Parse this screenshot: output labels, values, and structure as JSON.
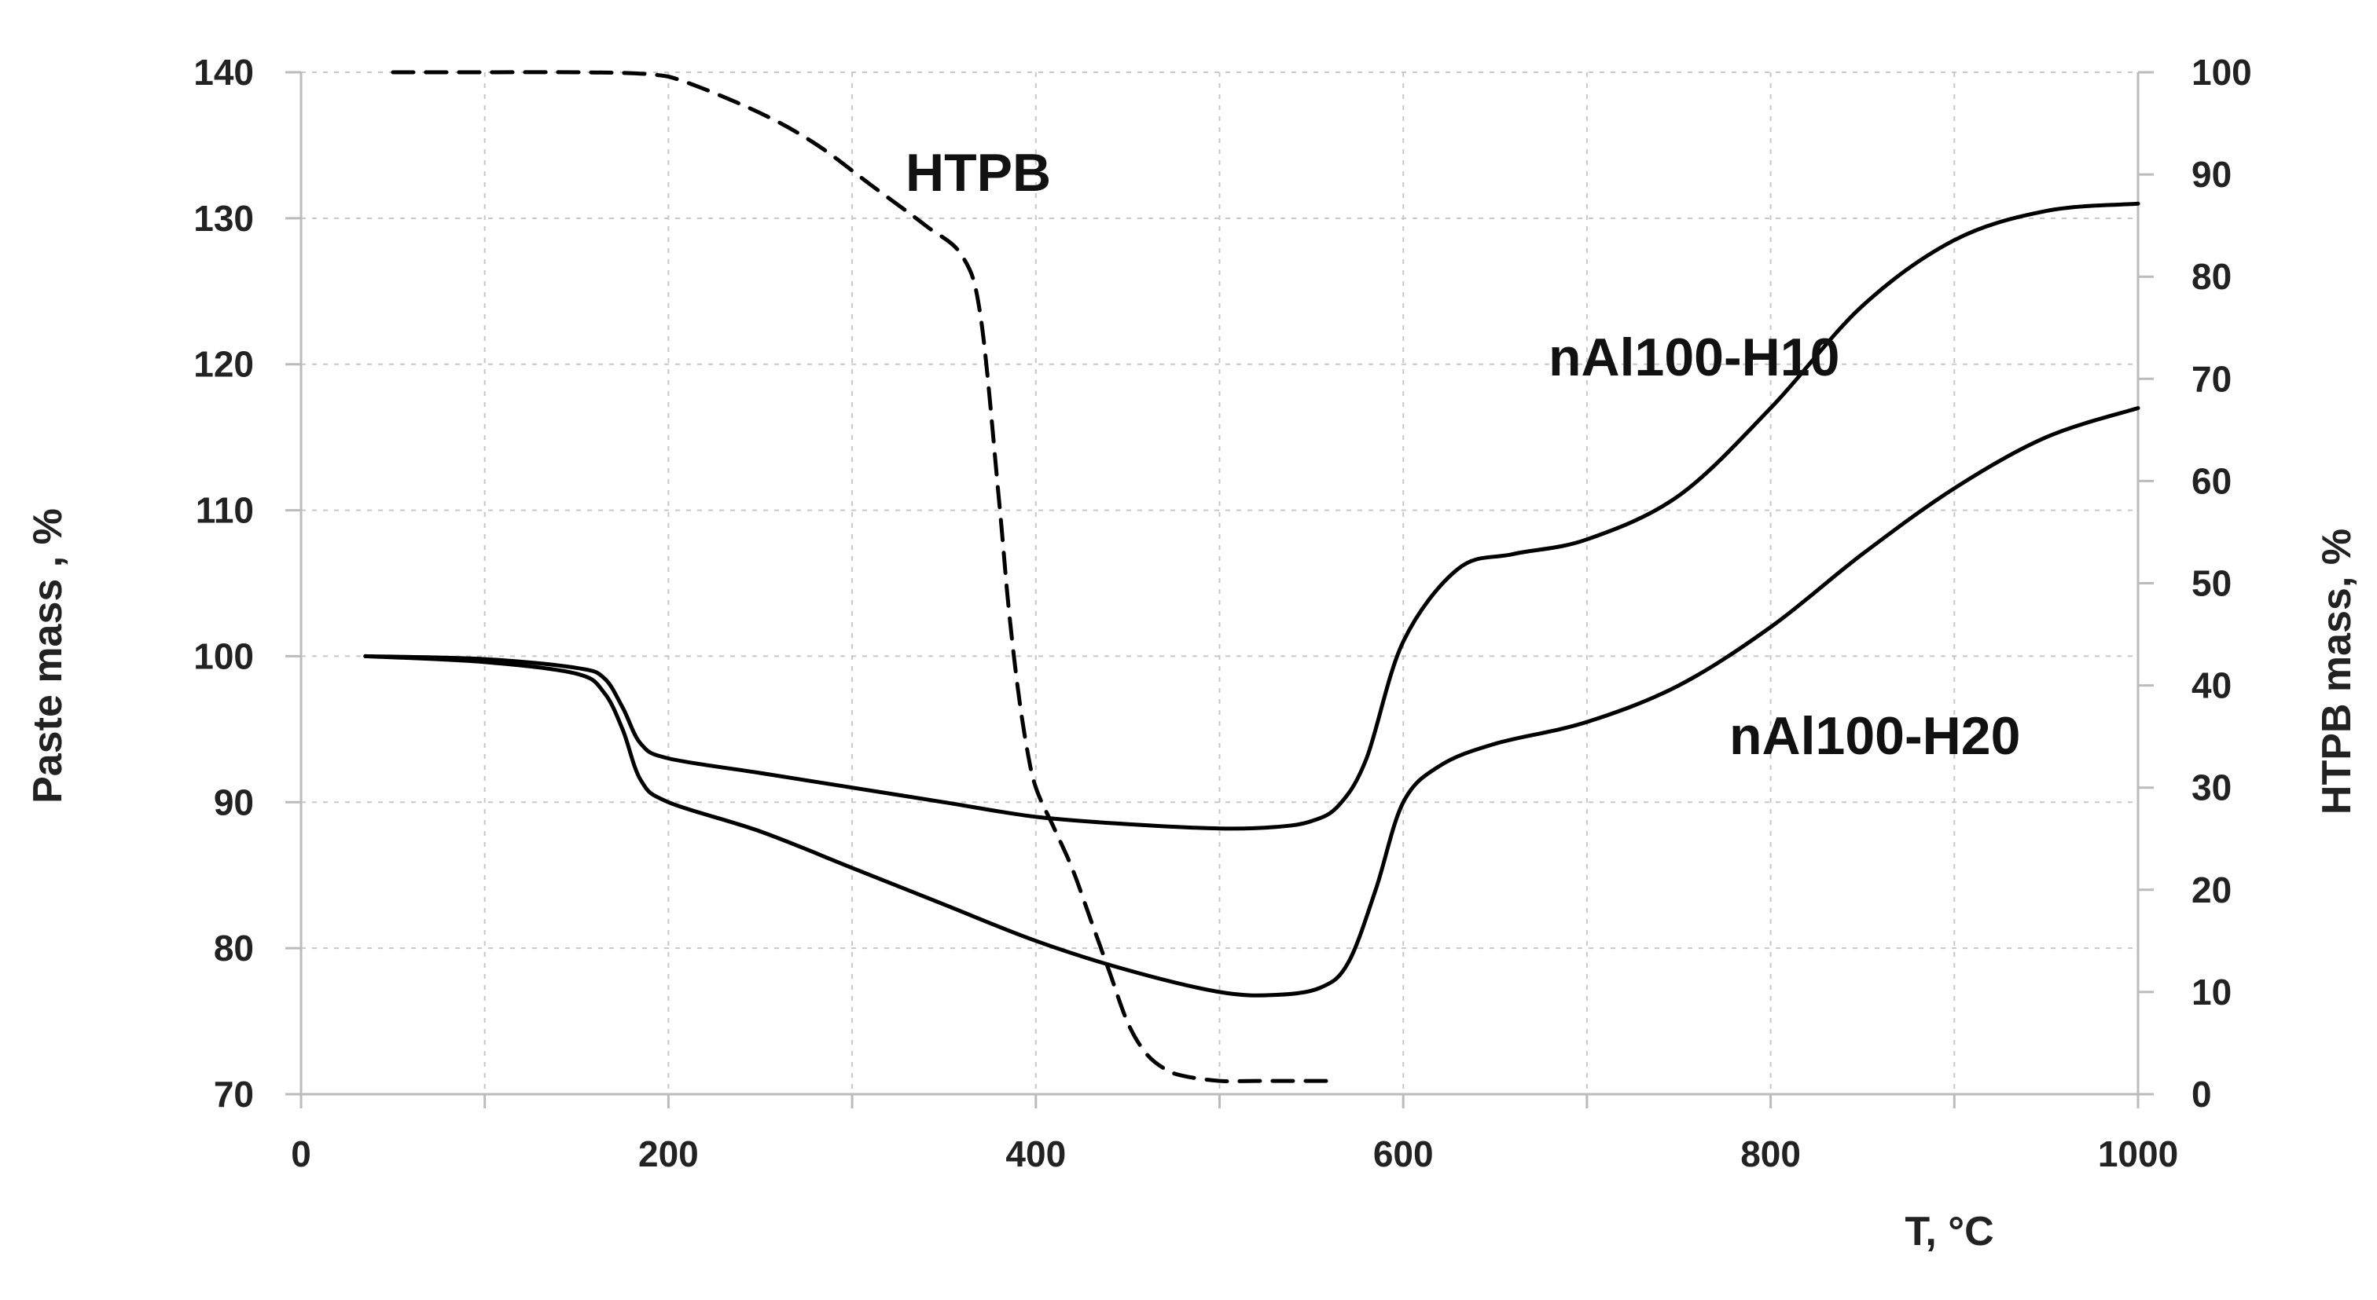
{
  "chart_data": {
    "type": "line",
    "xlabel": "T, °C",
    "ylabel_left": "Paste mass , %",
    "ylabel_right": "HTPB mass, %",
    "x_ticks": [
      "0",
      "200",
      "400",
      "600",
      "800",
      "1000"
    ],
    "y_left_ticks": [
      "70",
      "80",
      "90",
      "100",
      "110",
      "120",
      "130",
      "140"
    ],
    "y_right_ticks": [
      "0",
      "10",
      "20",
      "30",
      "40",
      "50",
      "60",
      "70",
      "80",
      "90",
      "100"
    ],
    "xlim": [
      0,
      1000
    ],
    "ylim_left": [
      70,
      140
    ],
    "ylim_right": [
      0,
      100
    ],
    "grid": true,
    "series": [
      {
        "name": "HTPB",
        "axis": "right",
        "style": "dashed",
        "color": "#000000",
        "x": [
          50,
          100,
          150,
          190,
          210,
          250,
          280,
          310,
          340,
          360,
          370,
          380,
          385,
          390,
          395,
          400,
          410,
          420,
          430,
          440,
          450,
          460,
          470,
          480,
          500,
          520,
          560
        ],
        "y": [
          100,
          100,
          100,
          99.8,
          99,
          96,
          93,
          89,
          85,
          82,
          76,
          58,
          48,
          40,
          34,
          30,
          26,
          22,
          17,
          12,
          7,
          4,
          2.5,
          1.8,
          1.3,
          1.3,
          1.3
        ]
      },
      {
        "name": "nAl100-H10",
        "axis": "left",
        "style": "solid",
        "color": "#000000",
        "x": [
          35,
          100,
          150,
          165,
          175,
          185,
          200,
          250,
          300,
          350,
          400,
          450,
          500,
          530,
          550,
          565,
          580,
          600,
          630,
          660,
          700,
          750,
          800,
          850,
          900,
          950,
          1000
        ],
        "y": [
          100,
          99.8,
          99.2,
          98.5,
          96.5,
          94,
          93,
          92,
          91,
          90,
          89,
          88.5,
          88.2,
          88.3,
          88.7,
          89.8,
          93,
          101,
          106,
          107,
          108,
          111,
          117,
          124,
          128.5,
          130.5,
          131
        ]
      },
      {
        "name": "nAl100-H20",
        "axis": "left",
        "style": "solid",
        "color": "#000000",
        "x": [
          35,
          100,
          150,
          165,
          175,
          185,
          200,
          250,
          300,
          350,
          400,
          450,
          500,
          530,
          555,
          570,
          585,
          600,
          620,
          650,
          700,
          750,
          800,
          850,
          900,
          950,
          1000
        ],
        "y": [
          100,
          99.6,
          98.8,
          97.5,
          95,
          91.5,
          90,
          88,
          85.5,
          83,
          80.5,
          78.5,
          77,
          76.8,
          77.3,
          79,
          84,
          90,
          92.5,
          94,
          95.5,
          98,
          102,
          107,
          111.5,
          115,
          117
        ]
      }
    ]
  }
}
